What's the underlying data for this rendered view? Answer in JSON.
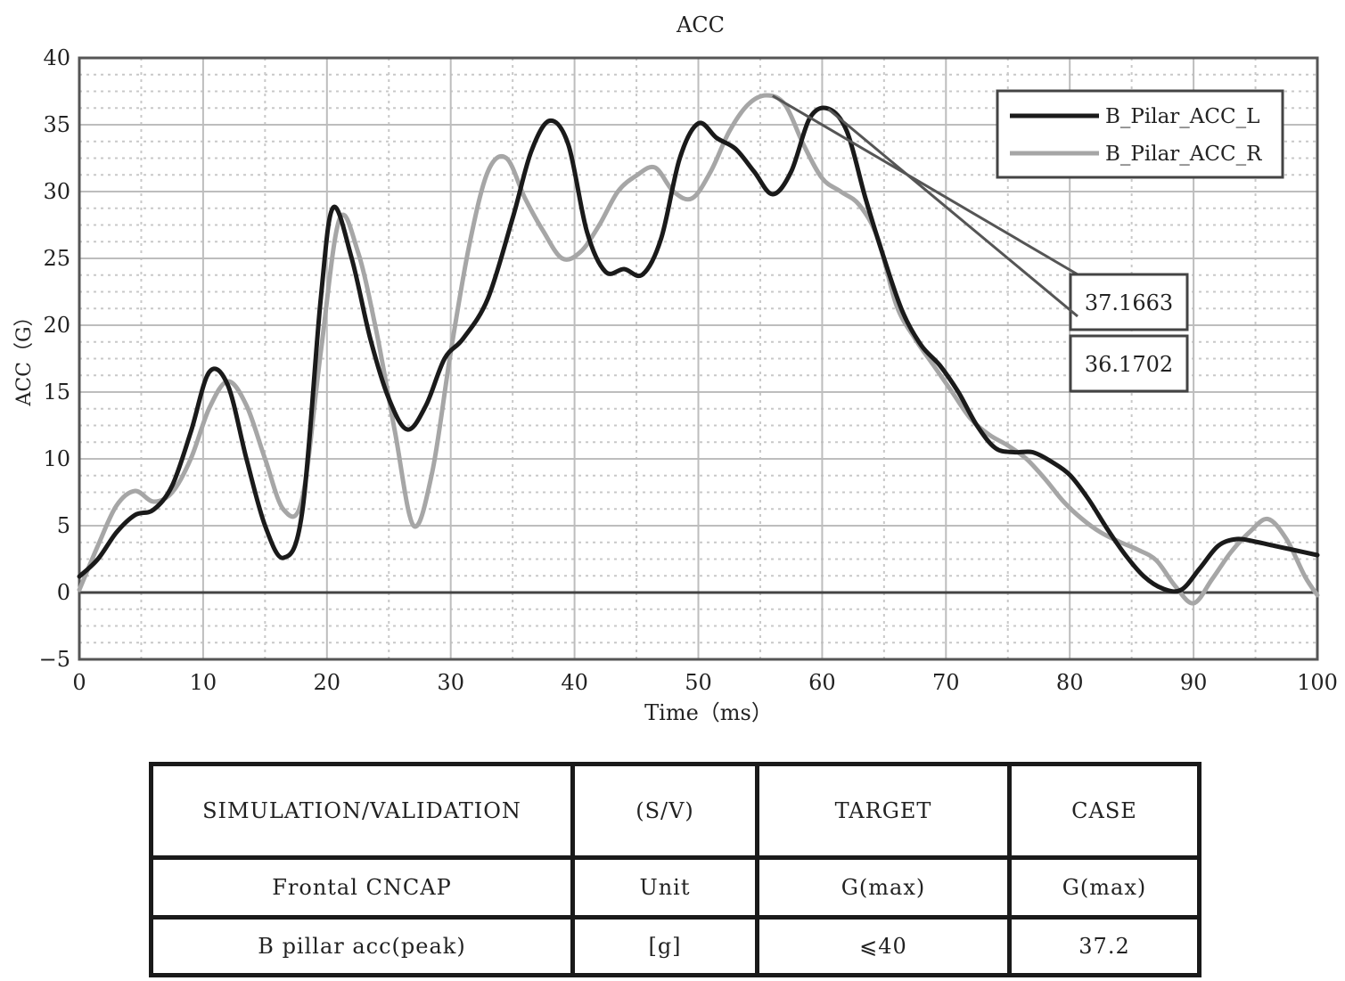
{
  "chart_data": {
    "type": "line",
    "title": "ACC",
    "xlabel": "Time（ms）",
    "ylabel": "ACC（G）",
    "xlim": [
      0,
      100
    ],
    "ylim": [
      -5,
      40
    ],
    "x_ticks": [
      0,
      10,
      20,
      30,
      40,
      50,
      60,
      70,
      80,
      90,
      100
    ],
    "y_ticks": [
      -5,
      0,
      5,
      10,
      15,
      20,
      25,
      30,
      35,
      40
    ],
    "grid": true,
    "legend_position": "top-right",
    "series": [
      {
        "name": "B_Pilar_ACC_L",
        "color": "#1a1a1a",
        "x": [
          0,
          1.5,
          3,
          4.5,
          6,
          7.5,
          9,
          10.5,
          12,
          13.5,
          15,
          16.5,
          18,
          19.5,
          20.5,
          22,
          23.5,
          25,
          26.5,
          28,
          29.5,
          31,
          33,
          35,
          36.5,
          38,
          39.5,
          41,
          42.5,
          44,
          45.5,
          47,
          48.5,
          50,
          51.5,
          53,
          54.5,
          56,
          57.5,
          59,
          60.5,
          62,
          63.5,
          65,
          66.5,
          68,
          69.5,
          71,
          72.5,
          74,
          75.5,
          77,
          78.5,
          80,
          81.5,
          83,
          84.5,
          86,
          87.5,
          89,
          90.5,
          92,
          93.5,
          95,
          96.5,
          98,
          100
        ],
        "values": [
          1.2,
          2.5,
          4.5,
          5.8,
          6.2,
          8.0,
          12.0,
          16.5,
          15.5,
          10.0,
          5.0,
          2.6,
          6.0,
          22.0,
          28.8,
          25.0,
          19.0,
          14.5,
          12.2,
          14.0,
          17.5,
          19.0,
          22.0,
          28.0,
          33.0,
          35.3,
          33.5,
          27.0,
          24.0,
          24.2,
          23.8,
          26.5,
          32.5,
          35.1,
          34.0,
          33.2,
          31.5,
          29.8,
          31.5,
          35.5,
          36.2,
          34.5,
          29.5,
          25.0,
          21.0,
          18.5,
          17.0,
          15.0,
          12.5,
          10.8,
          10.5,
          10.5,
          9.8,
          8.8,
          7.0,
          4.8,
          2.8,
          1.2,
          0.3,
          0.2,
          1.8,
          3.5,
          4.0,
          3.8,
          3.5,
          3.2,
          2.8
        ]
      },
      {
        "name": "B_Pilar_ACC_R",
        "color": "#a6a6a6",
        "x": [
          0,
          1.5,
          3,
          4.5,
          6,
          7.5,
          9,
          10.5,
          12,
          13.5,
          15,
          16.5,
          18,
          19.5,
          21,
          22.5,
          24,
          25.5,
          27,
          28.5,
          30,
          31.5,
          33,
          34.5,
          36,
          37.5,
          39,
          40.5,
          42,
          43.5,
          45,
          46.5,
          48,
          49.5,
          51,
          52.5,
          54,
          55.5,
          57,
          58.5,
          60,
          61.5,
          63,
          64.5,
          66,
          67.5,
          69,
          70.5,
          72,
          73.5,
          75,
          76.5,
          78,
          79.5,
          81,
          82.5,
          84,
          85.5,
          87,
          88.5,
          90,
          91.5,
          93,
          94.5,
          96,
          97.5,
          99,
          100
        ],
        "values": [
          0.2,
          3.5,
          6.5,
          7.6,
          6.8,
          7.5,
          10.0,
          13.8,
          15.8,
          14.0,
          10.0,
          6.2,
          7.0,
          18.0,
          27.9,
          25.5,
          19.5,
          12.0,
          5.0,
          9.0,
          18.0,
          26.0,
          31.5,
          32.5,
          29.5,
          27.0,
          25.0,
          25.5,
          27.5,
          30.0,
          31.2,
          31.8,
          30.0,
          29.5,
          31.5,
          34.5,
          36.5,
          37.2,
          36.5,
          33.5,
          31.0,
          30.0,
          29.0,
          26.5,
          21.5,
          19.0,
          17.0,
          15.0,
          13.0,
          11.8,
          11.0,
          10.0,
          8.5,
          6.8,
          5.5,
          4.5,
          3.8,
          3.2,
          2.4,
          0.5,
          -0.8,
          1.0,
          3.0,
          4.5,
          5.5,
          4.0,
          1.2,
          -0.2
        ]
      }
    ],
    "annotations": [
      {
        "label": "37.1663",
        "x": 56,
        "y": 37.1663
      },
      {
        "label": "36.1702",
        "x": 60.5,
        "y": 36.1702
      }
    ]
  },
  "table": {
    "header": [
      "SIMULATION/VALIDATION",
      "(S/V)",
      "TARGET",
      "CASE"
    ],
    "rows": [
      [
        "Frontal CNCAP",
        "Unit",
        "G(max)",
        "G(max)"
      ],
      [
        "B pillar acc(peak)",
        "[g]",
        "⩽40",
        "37.2"
      ]
    ]
  }
}
